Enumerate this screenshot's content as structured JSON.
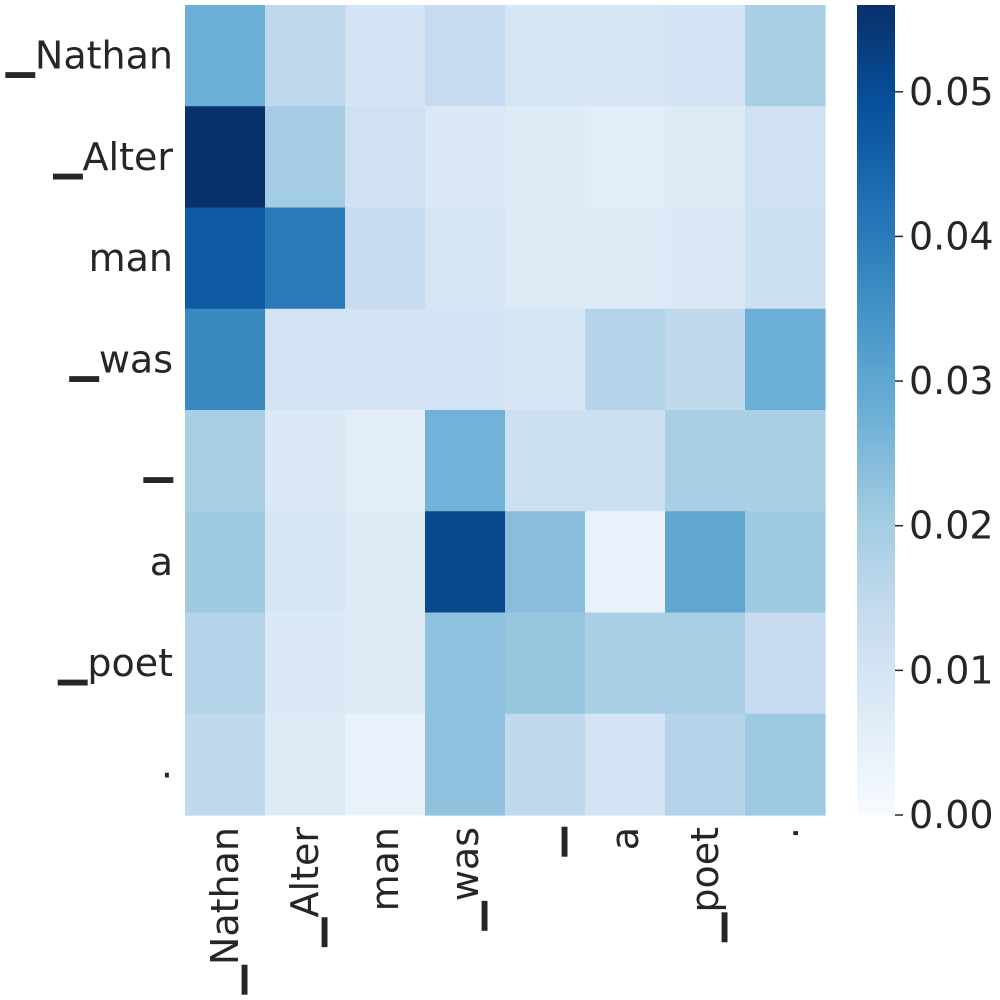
{
  "chart_data": {
    "type": "heatmap",
    "title": "",
    "xlabel": "",
    "ylabel": "",
    "rows": [
      "▁Nathan",
      "▁Alter",
      "man",
      "▁was",
      "▁",
      "a",
      "▁poet",
      "."
    ],
    "cols": [
      "▁Nathan",
      "▁Alter",
      "man",
      "▁was",
      "▁",
      "a",
      "▁poet",
      "."
    ],
    "values": [
      [
        0.028,
        0.015,
        0.01,
        0.014,
        0.009,
        0.009,
        0.01,
        0.019
      ],
      [
        0.056,
        0.02,
        0.011,
        0.008,
        0.007,
        0.006,
        0.007,
        0.011
      ],
      [
        0.047,
        0.04,
        0.014,
        0.009,
        0.007,
        0.007,
        0.008,
        0.012
      ],
      [
        0.037,
        0.01,
        0.01,
        0.01,
        0.009,
        0.017,
        0.015,
        0.028
      ],
      [
        0.019,
        0.008,
        0.006,
        0.027,
        0.012,
        0.012,
        0.019,
        0.019
      ],
      [
        0.021,
        0.009,
        0.007,
        0.051,
        0.024,
        0.004,
        0.03,
        0.021
      ],
      [
        0.017,
        0.008,
        0.007,
        0.023,
        0.022,
        0.019,
        0.019,
        0.014
      ],
      [
        0.015,
        0.007,
        0.004,
        0.023,
        0.015,
        0.01,
        0.017,
        0.021
      ]
    ],
    "colorbar": {
      "min": 0.0,
      "max": 0.056,
      "ticks": [
        0.0,
        0.01,
        0.02,
        0.03,
        0.04,
        0.05
      ],
      "tick_labels": [
        "0.00",
        "0.01",
        "0.02",
        "0.03",
        "0.04",
        "0.05"
      ],
      "colormap": "Blues"
    },
    "grid": false
  }
}
